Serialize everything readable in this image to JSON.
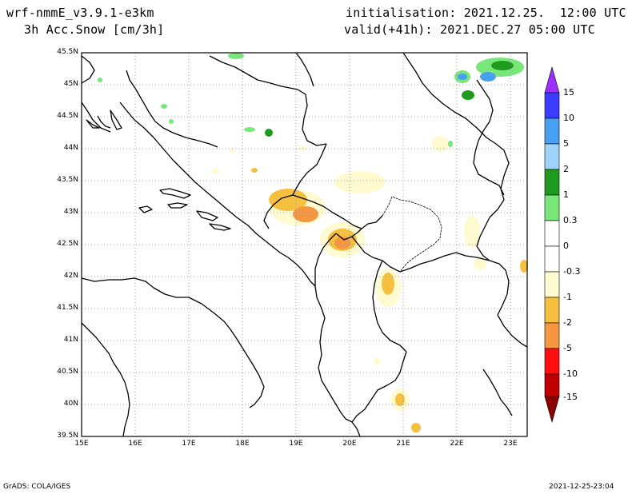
{
  "header": {
    "model": "wrf-nmmE_v3.9.1-e3km",
    "field": "3h Acc.Snow [cm/3h]",
    "init": "initialisation: 2021.12.25.  12:00 UTC",
    "valid": "valid(+41h): 2021.DEC.27 05:00 UTC"
  },
  "map": {
    "lon_ticks": [
      "15E",
      "16E",
      "17E",
      "18E",
      "19E",
      "20E",
      "21E",
      "22E",
      "23E"
    ],
    "lat_ticks": [
      "45.5N",
      "45N",
      "44.5N",
      "44N",
      "43.5N",
      "43N",
      "42.5N",
      "42N",
      "41.5N",
      "41N",
      "40.5N",
      "40N",
      "39.5N"
    ],
    "lon_range": [
      15,
      23.3
    ],
    "lat_range": [
      39.5,
      45.5
    ],
    "grid": "dotted"
  },
  "colorbar": {
    "labels": [
      "15",
      "10",
      "5",
      "2",
      "1",
      "0.3",
      "0",
      "-0.3",
      "-1",
      "-2",
      "-5",
      "-10",
      "-15"
    ],
    "colors": [
      "#9b30ff",
      "#3c3cff",
      "#4aa0f0",
      "#a0d2fa",
      "#1e9b1e",
      "#78e678",
      "#ffffff",
      "#fffad0",
      "#f5c040",
      "#f59640",
      "#ff1010",
      "#c00000",
      "#8c0000"
    ]
  },
  "footer": {
    "left": "GrADS: COLA/IGES",
    "right": "2021-12-25-23:04"
  }
}
